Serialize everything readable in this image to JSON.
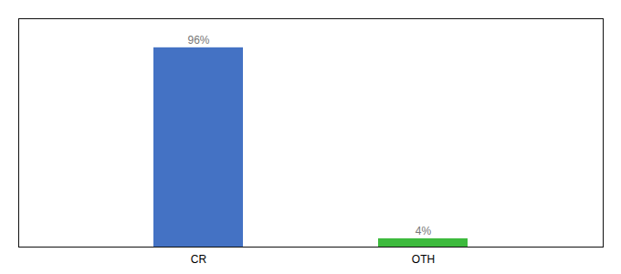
{
  "chart_data": {
    "type": "bar",
    "categories": [
      "CR",
      "OTH"
    ],
    "values": [
      96,
      4
    ],
    "value_labels": [
      "96%",
      "4%"
    ],
    "colors": [
      "#4472c4",
      "#3dba3d"
    ],
    "ylim": [
      0,
      110
    ],
    "data_labels": true,
    "tick_labels": "x"
  }
}
